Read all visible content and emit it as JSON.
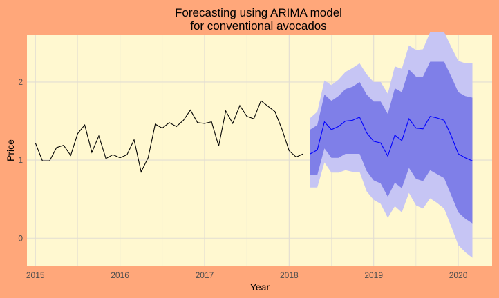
{
  "chart_data": {
    "type": "line",
    "title": [
      "Forecasting using ARIMA model",
      "for conventional avocados"
    ],
    "xlabel": "Year",
    "ylabel": "Price",
    "xlim": [
      2014.9,
      2020.4
    ],
    "ylim": [
      -0.36,
      2.6
    ],
    "x_ticks": [
      2015,
      2016,
      2017,
      2018,
      2019,
      2020
    ],
    "x_tick_labels": [
      "2015",
      "2016",
      "2017",
      "2018",
      "2019",
      "2020"
    ],
    "y_ticks": [
      0,
      1,
      2
    ],
    "y_tick_labels": [
      "0",
      "1",
      "2"
    ],
    "grid": true,
    "legend": "none",
    "colors": {
      "background": "#FFA77A",
      "panel": "#FFF8D0",
      "grid": "#E2DDD2",
      "observed": "#000000",
      "forecast": "#0000FF",
      "band_95": "#C6C5F4",
      "band_80": "#7F7FE8"
    },
    "observed": {
      "x": [
        2015.0,
        2015.083,
        2015.167,
        2015.25,
        2015.333,
        2015.417,
        2015.5,
        2015.583,
        2015.667,
        2015.75,
        2015.833,
        2015.917,
        2016.0,
        2016.083,
        2016.167,
        2016.25,
        2016.333,
        2016.417,
        2016.5,
        2016.583,
        2016.667,
        2016.75,
        2016.833,
        2016.917,
        2017.0,
        2017.083,
        2017.167,
        2017.25,
        2017.333,
        2017.417,
        2017.5,
        2017.583,
        2017.667,
        2017.75,
        2017.833,
        2017.917,
        2018.0,
        2018.083,
        2018.167
      ],
      "y": [
        1.22,
        0.99,
        0.99,
        1.16,
        1.19,
        1.06,
        1.34,
        1.45,
        1.1,
        1.31,
        1.02,
        1.07,
        1.03,
        1.07,
        1.26,
        0.85,
        1.03,
        1.46,
        1.41,
        1.48,
        1.43,
        1.51,
        1.64,
        1.48,
        1.47,
        1.49,
        1.18,
        1.63,
        1.47,
        1.7,
        1.56,
        1.53,
        1.76,
        1.69,
        1.62,
        1.39,
        1.12,
        1.04,
        1.08
      ]
    },
    "forecast": {
      "x": [
        2018.25,
        2018.333,
        2018.417,
        2018.5,
        2018.583,
        2018.667,
        2018.75,
        2018.833,
        2018.917,
        2019.0,
        2019.083,
        2019.167,
        2019.25,
        2019.333,
        2019.417,
        2019.5,
        2019.583,
        2019.667,
        2019.75,
        2019.833,
        2019.917,
        2020.0,
        2020.083,
        2020.167
      ],
      "mean": [
        1.08,
        1.13,
        1.49,
        1.39,
        1.43,
        1.5,
        1.51,
        1.55,
        1.35,
        1.24,
        1.22,
        1.05,
        1.32,
        1.25,
        1.53,
        1.41,
        1.4,
        1.56,
        1.54,
        1.51,
        1.31,
        1.08,
        1.03,
        0.99
      ],
      "lo80": [
        0.81,
        0.81,
        1.15,
        1.03,
        1.03,
        1.08,
        1.08,
        1.08,
        0.86,
        0.74,
        0.7,
        0.53,
        0.71,
        0.64,
        0.9,
        0.76,
        0.73,
        0.87,
        0.82,
        0.77,
        0.55,
        0.33,
        0.25,
        0.19
      ],
      "hi80": [
        1.39,
        1.45,
        1.84,
        1.76,
        1.82,
        1.91,
        1.94,
        2.0,
        1.84,
        1.75,
        1.75,
        1.59,
        1.92,
        1.87,
        2.16,
        2.07,
        2.07,
        2.26,
        2.26,
        2.26,
        2.07,
        1.87,
        1.82,
        1.8
      ],
      "lo95": [
        0.65,
        0.65,
        0.97,
        0.84,
        0.84,
        0.87,
        0.85,
        0.85,
        0.6,
        0.49,
        0.44,
        0.26,
        0.41,
        0.33,
        0.58,
        0.42,
        0.38,
        0.51,
        0.45,
        0.38,
        0.15,
        -0.09,
        -0.18,
        -0.25
      ],
      "hi95": [
        1.54,
        1.62,
        2.02,
        1.96,
        2.03,
        2.13,
        2.18,
        2.24,
        2.1,
        2.0,
        2.0,
        1.85,
        2.2,
        2.17,
        2.47,
        2.41,
        2.42,
        2.64,
        2.64,
        2.64,
        2.45,
        2.27,
        2.24,
        2.24
      ]
    }
  }
}
